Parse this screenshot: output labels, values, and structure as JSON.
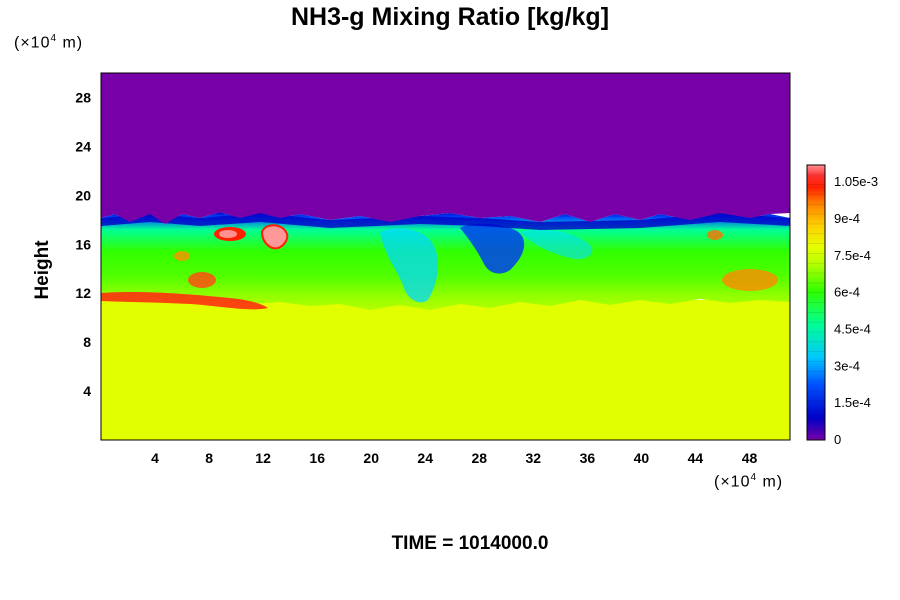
{
  "chart_data": {
    "type": "heatmap",
    "title": "NH3-g Mixing Ratio [kg/kg]",
    "ylabel": "Height",
    "xlabel": "",
    "x_unit_prefix": "(×10",
    "x_unit_exp": "4",
    "x_unit_suffix": " m)",
    "y_unit_prefix": "(×10",
    "y_unit_exp": "4",
    "y_unit_suffix": " m)",
    "xlim": [
      0,
      51
    ],
    "ylim": [
      0,
      30
    ],
    "x_ticks": [
      4,
      8,
      12,
      16,
      20,
      24,
      28,
      32,
      36,
      40,
      44,
      48
    ],
    "y_ticks": [
      4,
      8,
      12,
      16,
      20,
      24,
      28
    ],
    "colorbar": {
      "min": 0,
      "max": 0.00112,
      "ticks": [
        {
          "value": 0,
          "label": "0"
        },
        {
          "value": 0.00015,
          "label": "1.5e-4"
        },
        {
          "value": 0.0003,
          "label": "3e-4"
        },
        {
          "value": 0.00045,
          "label": "4.5e-4"
        },
        {
          "value": 0.0006,
          "label": "6e-4"
        },
        {
          "value": 0.00075,
          "label": "7.5e-4"
        },
        {
          "value": 0.0009,
          "label": "9e-4"
        },
        {
          "value": 0.00105,
          "label": "1.05e-3"
        }
      ],
      "colors": [
        "#7800a8",
        "#0000c8",
        "#0050ff",
        "#00c8ff",
        "#00ff96",
        "#30ff00",
        "#b4ff00",
        "#e6ff00",
        "#ffd000",
        "#ff8000",
        "#ff2000",
        "#ff9090"
      ]
    },
    "regions": {
      "lower_layer_height": [
        0,
        10.8
      ],
      "lower_layer_value": 0.00077,
      "upper_layer_height": [
        17.5,
        30
      ],
      "upper_layer_value": 0.0,
      "mixing_layer_height": [
        10.8,
        17.5
      ],
      "mixing_layer_value_range": [
        0.00012,
        0.00112
      ]
    }
  },
  "time_label": "TIME = 1014000.0"
}
